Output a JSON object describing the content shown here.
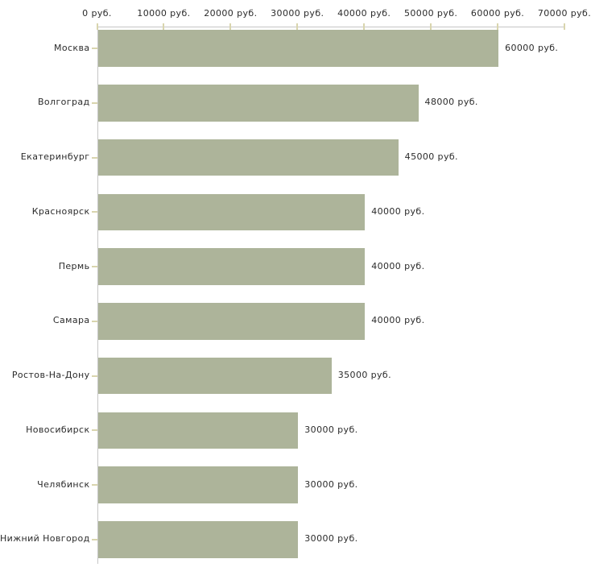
{
  "chart_data": {
    "type": "bar",
    "orientation": "horizontal",
    "title": "",
    "xlabel": "",
    "ylabel": "",
    "xlim": [
      0,
      70000
    ],
    "grid": false,
    "legend": false,
    "categories": [
      "Москва",
      "Волгоград",
      "Екатеринбург",
      "Красноярск",
      "Пермь",
      "Самара",
      "Ростов-На-Дону",
      "Новосибирск",
      "Челябинск",
      "Нижний Новгород"
    ],
    "values": [
      60000,
      48000,
      45000,
      40000,
      40000,
      40000,
      35000,
      30000,
      30000,
      30000
    ],
    "value_labels": [
      "60000 руб.",
      "48000 руб.",
      "45000 руб.",
      "40000 руб.",
      "40000 руб.",
      "40000 руб.",
      "35000 руб.",
      "30000 руб.",
      "30000 руб.",
      "30000 руб."
    ],
    "x_ticks": [
      0,
      10000,
      20000,
      30000,
      40000,
      50000,
      60000,
      70000
    ],
    "x_tick_labels": [
      "0 руб.",
      "10000 руб.",
      "20000 руб.",
      "30000 руб.",
      "40000 руб.",
      "50000 руб.",
      "60000 руб.",
      "70000 руб."
    ]
  },
  "colors": {
    "bar_fill": "#adb49a",
    "axis_line": "#c6c6c6",
    "tick_mark": "#d9d5ae",
    "text": "#2b2b2b",
    "background": "#ffffff"
  }
}
